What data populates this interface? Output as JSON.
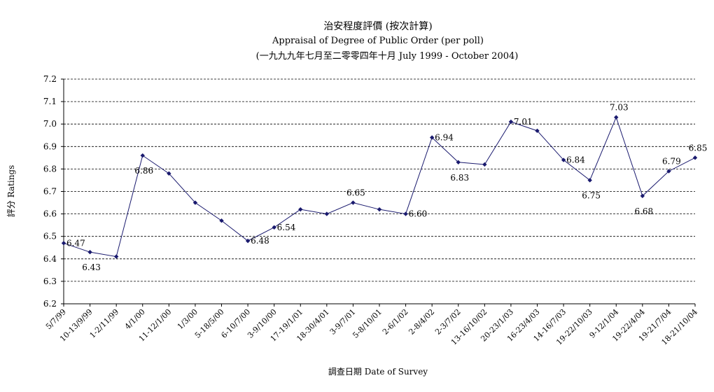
{
  "chart_data": {
    "type": "line",
    "title": "治安程度評價 (按次計算)",
    "subtitle": "Appraisal of Degree of Public Order (per poll)",
    "subtitle2": "(一九九九年七月至二零零四年十月 July 1999 - October 2004)",
    "xlabel": "調查日期 Date of Survey",
    "ylabel": "評分 Ratings",
    "ylim": [
      6.2,
      7.2
    ],
    "yticks": [
      "6.2",
      "6.3",
      "6.4",
      "6.5",
      "6.6",
      "6.7",
      "6.8",
      "6.9",
      "7.0",
      "7.1",
      "7.2"
    ],
    "grid": true,
    "categories": [
      "5/7/99",
      "10-13/9/99",
      "1-2/11/99",
      "4/1/00",
      "11-12/1/00",
      "1/3/00",
      "5-18/5/00",
      "6-10/7/00",
      "3-9/10/00",
      "17-19/1/01",
      "18-30/4/01",
      "3-9/7/01",
      "5-8/10/01",
      "2-6/1/02",
      "2-8/4/02",
      "2-3/7/02",
      "13-16/10/02",
      "20-23/1/03",
      "16-23/4/03",
      "14-16/7/03",
      "19-22/10/03",
      "9-12/1/04",
      "19-22/4/04",
      "19-21/7/04",
      "18-21/10/04"
    ],
    "values": [
      6.47,
      6.43,
      6.41,
      6.86,
      6.78,
      6.65,
      6.57,
      6.48,
      6.54,
      6.62,
      6.6,
      6.65,
      6.62,
      6.6,
      6.94,
      6.83,
      6.82,
      7.01,
      6.97,
      6.84,
      6.75,
      7.03,
      6.68,
      6.79,
      6.85
    ],
    "data_labels": [
      {
        "index": 0,
        "text": "6.47",
        "pos": "right"
      },
      {
        "index": 1,
        "text": "6.43",
        "pos": "below"
      },
      {
        "index": 3,
        "text": "6.86",
        "pos": "below"
      },
      {
        "index": 7,
        "text": "6.48",
        "pos": "right"
      },
      {
        "index": 8,
        "text": "6.54",
        "pos": "right"
      },
      {
        "index": 11,
        "text": "6.65",
        "pos": "above"
      },
      {
        "index": 13,
        "text": "6.60",
        "pos": "right"
      },
      {
        "index": 14,
        "text": "6.94",
        "pos": "right"
      },
      {
        "index": 15,
        "text": "6.83",
        "pos": "below"
      },
      {
        "index": 17,
        "text": "7.01",
        "pos": "right"
      },
      {
        "index": 19,
        "text": "6.84",
        "pos": "right"
      },
      {
        "index": 20,
        "text": "6.75",
        "pos": "below"
      },
      {
        "index": 21,
        "text": "7.03",
        "pos": "above"
      },
      {
        "index": 22,
        "text": "6.68",
        "pos": "below"
      },
      {
        "index": 23,
        "text": "6.79",
        "pos": "above"
      },
      {
        "index": 24,
        "text": "6.85",
        "pos": "above"
      }
    ],
    "line_color": "#1a1a6e"
  }
}
